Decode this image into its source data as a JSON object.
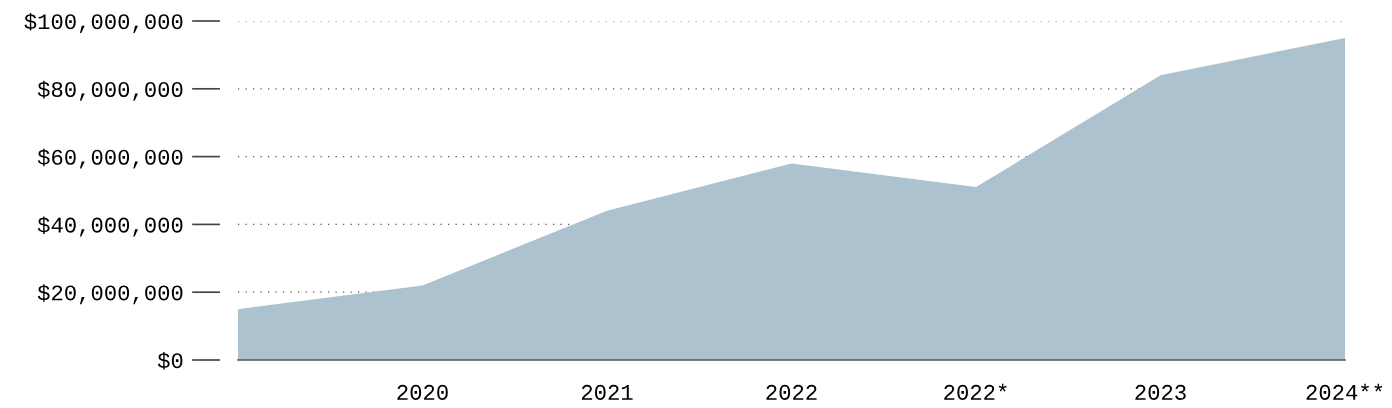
{
  "chart_data": {
    "type": "area",
    "categories": [
      null,
      "2020",
      "2021",
      "2022",
      "2022*",
      "2023",
      "2024**"
    ],
    "series": [
      {
        "color": "#adc2cf",
        "values": [
          15000000,
          22000000,
          44000000,
          58000000,
          51000000,
          84000000,
          95000000
        ]
      }
    ],
    "ylim": [
      0,
      100000000
    ],
    "yticks": [
      {
        "value": 0,
        "label": "$0"
      },
      {
        "value": 20000000,
        "label": "$20,000,000"
      },
      {
        "value": 40000000,
        "label": "$40,000,000"
      },
      {
        "value": 60000000,
        "label": "$60,000,000"
      },
      {
        "value": 80000000,
        "label": "$80,000,000"
      },
      {
        "value": 100000000,
        "label": "$100,000,000"
      }
    ],
    "grid": "y"
  }
}
